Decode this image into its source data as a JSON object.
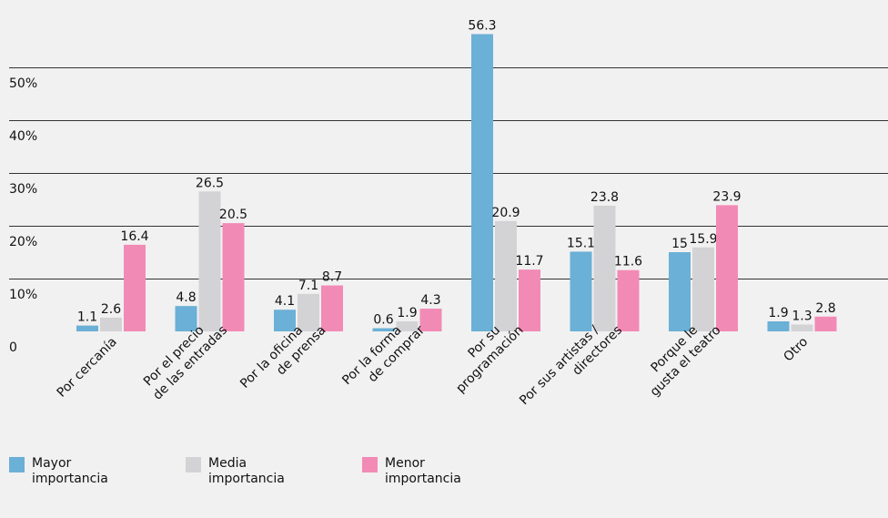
{
  "chart_data": {
    "type": "bar",
    "categories": [
      "Por cercanía",
      "Por el precio\nde las entradas",
      "Por la oficina\nde prensa",
      "Por la forma\nde comprar",
      "Por su\nprogramación",
      "Por sus artistas /\ndirectores",
      "Porque le\ngusta el teatro",
      "Otro"
    ],
    "series": [
      {
        "name": "Mayor importancia",
        "color": "#6bb0d6",
        "values": [
          1.1,
          4.8,
          4.1,
          0.6,
          56.3,
          15.1,
          15,
          1.9
        ],
        "labels": [
          "1.1",
          "4.8",
          "4.1",
          "0.6",
          "56.3",
          "15.1",
          "15",
          "1.9"
        ]
      },
      {
        "name": "Media importancia",
        "color": "#d3d3d6",
        "values": [
          2.6,
          26.5,
          7.1,
          1.9,
          20.9,
          23.8,
          15.9,
          1.3
        ],
        "labels": [
          "2.6",
          "26.5",
          "7.1",
          "1.9",
          "20.9",
          "23.8",
          "15.9",
          "1.3"
        ]
      },
      {
        "name": "Menor importancia",
        "color": "#f28ab6",
        "values": [
          16.4,
          20.5,
          8.7,
          4.3,
          11.7,
          11.6,
          23.9,
          2.8
        ],
        "labels": [
          "16.4",
          "20.5",
          "8.7",
          "4.3",
          "11.7",
          "11.6",
          "23.9",
          "2.8"
        ]
      }
    ],
    "yticks": [
      {
        "value": 0,
        "label": "0"
      },
      {
        "value": 10,
        "label": "10%"
      },
      {
        "value": 20,
        "label": "20%"
      },
      {
        "value": 30,
        "label": "30%"
      },
      {
        "value": 40,
        "label": "40%"
      },
      {
        "value": 50,
        "label": "50%"
      }
    ],
    "ylim": [
      0,
      60
    ],
    "grid": true,
    "legend_position": "bottom-left",
    "title": "",
    "xlabel": "",
    "ylabel": ""
  }
}
